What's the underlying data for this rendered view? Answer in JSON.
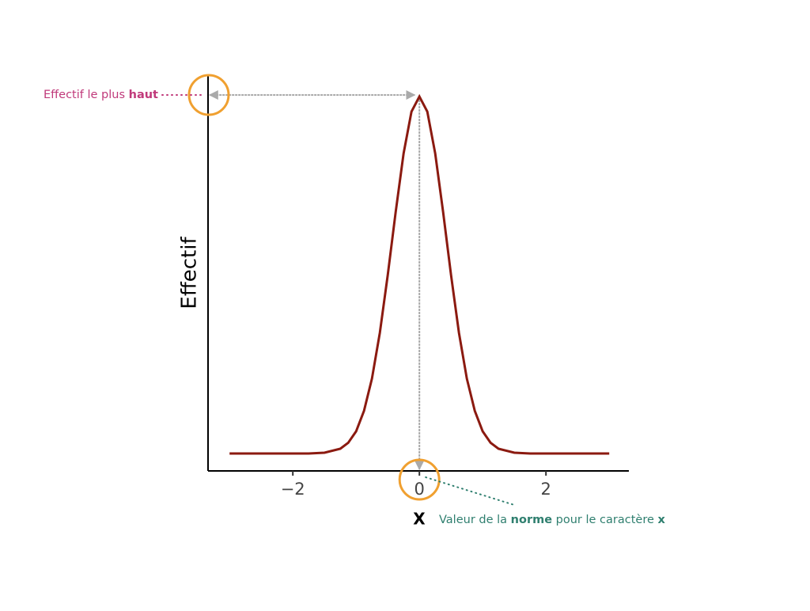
{
  "chart_data": {
    "type": "line",
    "x_label": "X",
    "y_label": "Effectif",
    "x": [
      -3,
      -2.5,
      -2,
      -1.75,
      -1.5,
      -1.25,
      -1.125,
      -1,
      -0.875,
      -0.75,
      -0.625,
      -0.5,
      -0.375,
      -0.25,
      -0.125,
      0,
      0.125,
      0.25,
      0.375,
      0.5,
      0.625,
      0.75,
      0.875,
      1,
      1.125,
      1.25,
      1.5,
      1.75,
      2,
      2.5,
      3
    ],
    "series": [
      {
        "color": "#8b1a10",
        "values": [
          0.044,
          0.044,
          0.044,
          0.044,
          0.046,
          0.056,
          0.071,
          0.1,
          0.152,
          0.233,
          0.349,
          0.495,
          0.654,
          0.802,
          0.908,
          0.946,
          0.908,
          0.802,
          0.654,
          0.495,
          0.349,
          0.233,
          0.152,
          0.1,
          0.071,
          0.056,
          0.046,
          0.044,
          0.044,
          0.044,
          0.044
        ]
      }
    ],
    "xlim": [
      -3.34,
      3.31
    ],
    "ylim": [
      0,
      1
    ],
    "xticks": [
      {
        "value": -2,
        "label": "−2"
      },
      0,
      2
    ],
    "peak": {
      "x": 0,
      "value": 0.946
    },
    "annotations": [
      {
        "parts": [
          "Effectif le plus ",
          "haut"
        ],
        "color": "#c0397a"
      },
      {
        "parts": [
          "Valeur de la ",
          "norme",
          " pour le caractère ",
          "x"
        ],
        "color": "#2f7f6f"
      }
    ]
  }
}
